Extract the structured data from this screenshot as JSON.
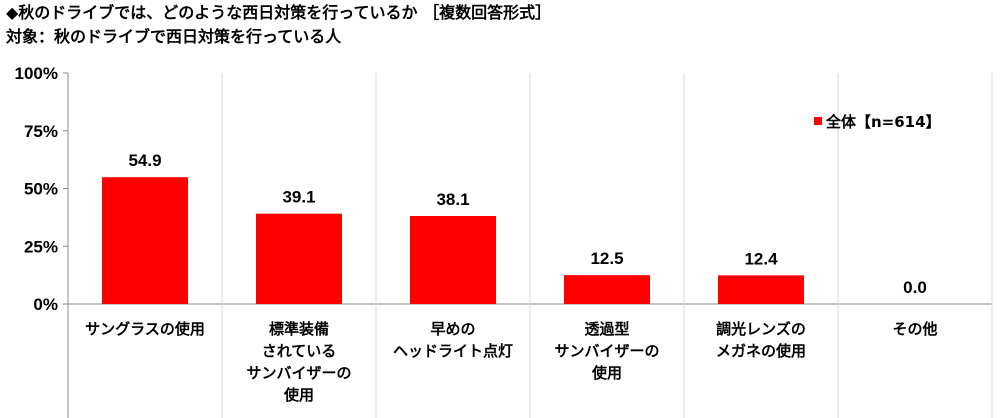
{
  "header": {
    "title": "◆秋のドライブでは、どのような西日対策を行っているか ［複数回答形式］",
    "subtitle": "対象：秋のドライブで西日対策を行っている人"
  },
  "chart_data": {
    "type": "bar",
    "categories": [
      [
        "サングラスの使用"
      ],
      [
        "標準装備",
        "されている",
        "サンバイザーの",
        "使用"
      ],
      [
        "早めの",
        "ヘッドライト点灯"
      ],
      [
        "透過型",
        "サンバイザーの",
        "使用"
      ],
      [
        "調光レンズの",
        "メガネの使用"
      ],
      [
        "その他"
      ]
    ],
    "series": [
      {
        "name": "全体【n=614】",
        "values": [
          54.9,
          39.1,
          38.1,
          12.5,
          12.4,
          0.0
        ],
        "color": "#ff0000"
      }
    ],
    "value_labels": [
      "54.9",
      "39.1",
      "38.1",
      "12.5",
      "12.4",
      "0.0"
    ],
    "ylim": [
      0,
      100
    ],
    "yticks": [
      0,
      25,
      50,
      75,
      100
    ],
    "ytick_labels": [
      "0%",
      "25%",
      "50%",
      "75%",
      "100%"
    ],
    "grid": false,
    "category_separators": true,
    "legend_position": "top-right"
  }
}
